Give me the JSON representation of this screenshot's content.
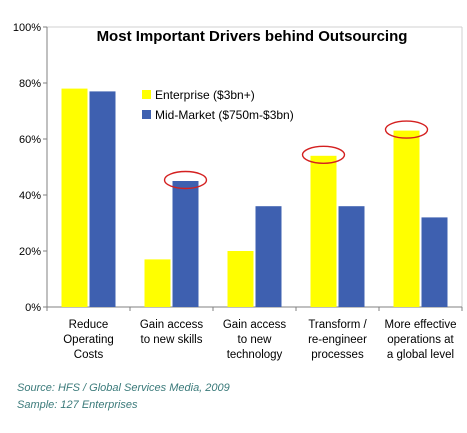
{
  "chart_data": {
    "type": "bar",
    "title": "Most Important Drivers behind Outsourcing",
    "categories": [
      [
        "Reduce",
        "Operating",
        "Costs"
      ],
      [
        "Gain access",
        "to new skills"
      ],
      [
        "Gain access",
        "to new",
        "technology"
      ],
      [
        "Transform /",
        "re-engineer",
        "processes"
      ],
      [
        "More effective",
        "operations at",
        "a global level"
      ]
    ],
    "series": [
      {
        "name": "Enterprise ($3bn+)",
        "color": "#ffff00",
        "values": [
          78,
          17,
          20,
          54,
          63
        ]
      },
      {
        "name": "Mid-Market ($750m-$3bn)",
        "color": "#3e60b0",
        "values": [
          77,
          45,
          36,
          36,
          32
        ]
      }
    ],
    "ylim": [
      0,
      100
    ],
    "yticks": [
      "0%",
      "20%",
      "40%",
      "60%",
      "80%",
      "100%"
    ],
    "ytick_values": [
      0,
      20,
      40,
      60,
      80,
      100
    ],
    "grid": false,
    "legend": "top-center",
    "highlights": [
      {
        "category": 1,
        "series": 1
      },
      {
        "category": 3,
        "series": 0
      },
      {
        "category": 4,
        "series": 0
      }
    ],
    "highlight_color": "#d42020"
  },
  "notes": {
    "source": "Source: HFS / Global Services Media, 2009",
    "sample": "Sample: 127 Enterprises"
  }
}
